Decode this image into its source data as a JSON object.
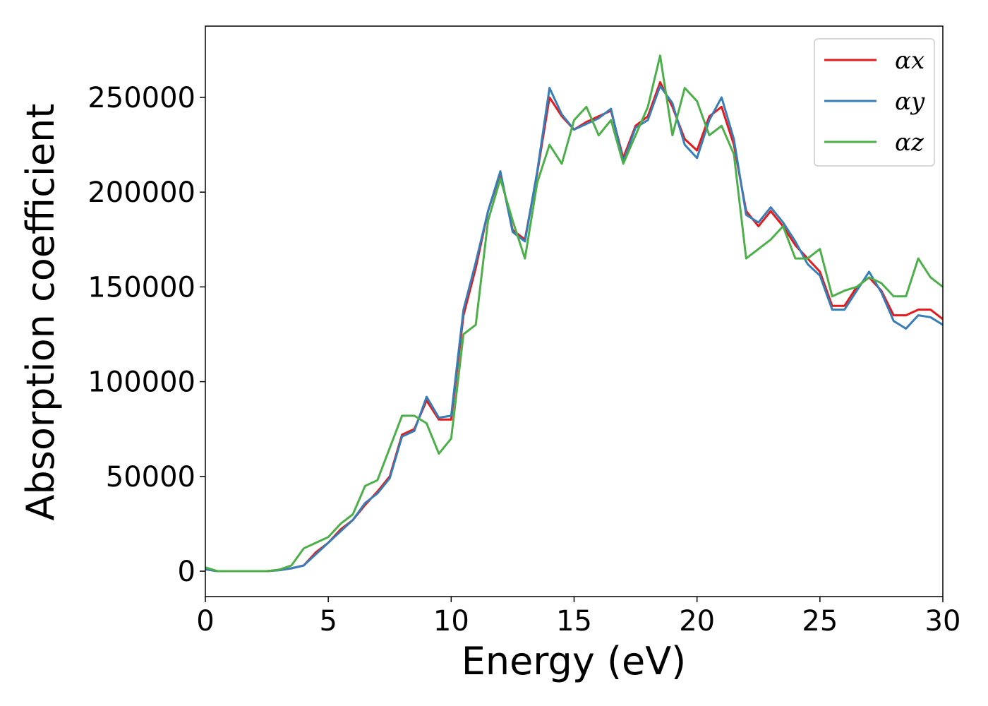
{
  "chart_data": {
    "type": "line",
    "x_label": "Energy (eV)",
    "y_label": "Absorption coefficient",
    "x": [
      0,
      0.5,
      1,
      1.5,
      2,
      2.5,
      3,
      3.5,
      4,
      4.5,
      5,
      5.5,
      6,
      6.5,
      7,
      7.5,
      8,
      8.5,
      9,
      9.5,
      10,
      10.5,
      11,
      11.5,
      12,
      12.5,
      13,
      13.5,
      14,
      14.5,
      15,
      15.5,
      16,
      16.5,
      17,
      17.5,
      18,
      18.5,
      19,
      19.5,
      20,
      20.5,
      21,
      21.5,
      22,
      22.5,
      23,
      23.5,
      24,
      24.5,
      25,
      25.5,
      26,
      26.5,
      27,
      27.5,
      28,
      28.5,
      29,
      29.5,
      30
    ],
    "series": [
      {
        "name": "αx",
        "color": "#e41a1c",
        "values": [
          1000,
          0,
          0,
          0,
          0,
          0,
          500,
          1500,
          3000,
          10000,
          15000,
          22000,
          27000,
          35000,
          42000,
          50000,
          72000,
          75000,
          90000,
          80000,
          80000,
          135000,
          160000,
          190000,
          210000,
          180000,
          175000,
          210000,
          250000,
          240000,
          233000,
          237000,
          240000,
          243000,
          218000,
          235000,
          240000,
          258000,
          245000,
          228000,
          222000,
          240000,
          245000,
          225000,
          190000,
          182000,
          190000,
          182000,
          172000,
          165000,
          158000,
          140000,
          140000,
          150000,
          155000,
          148000,
          135000,
          135000,
          138000,
          138000,
          133000
        ]
      },
      {
        "name": "αy",
        "color": "#377eb8",
        "values": [
          1000,
          0,
          0,
          0,
          0,
          0,
          500,
          1500,
          3000,
          9000,
          15000,
          21000,
          27000,
          36000,
          41000,
          49000,
          71000,
          74000,
          92000,
          81000,
          82000,
          138000,
          163000,
          190000,
          211000,
          179000,
          174000,
          211000,
          255000,
          241000,
          233000,
          236000,
          239000,
          244000,
          216000,
          234000,
          238000,
          256000,
          247000,
          225000,
          218000,
          238000,
          250000,
          228000,
          188000,
          184000,
          192000,
          184000,
          174000,
          162000,
          156000,
          138000,
          138000,
          148000,
          158000,
          147000,
          132000,
          128000,
          135000,
          134000,
          130000
        ]
      },
      {
        "name": "αz",
        "color": "#4daf4a",
        "values": [
          2000,
          0,
          0,
          0,
          0,
          0,
          800,
          3000,
          12000,
          15000,
          18000,
          25000,
          30000,
          45000,
          48000,
          65000,
          82000,
          82000,
          78000,
          62000,
          70000,
          125000,
          130000,
          185000,
          207000,
          185000,
          165000,
          205000,
          225000,
          215000,
          238000,
          245000,
          230000,
          238000,
          215000,
          230000,
          245000,
          272000,
          230000,
          255000,
          248000,
          230000,
          235000,
          220000,
          165000,
          170000,
          175000,
          182000,
          165000,
          165000,
          170000,
          145000,
          148000,
          150000,
          155000,
          152000,
          145000,
          145000,
          165000,
          155000,
          150000
        ]
      }
    ],
    "xlim": [
      0,
      30
    ],
    "xticks": [
      0,
      5,
      10,
      15,
      20,
      25,
      30
    ],
    "ylim": [
      -13400,
      287600
    ],
    "yticks": [
      0,
      50000,
      100000,
      150000,
      200000,
      250000
    ],
    "grid": false,
    "legend": "upper right"
  }
}
